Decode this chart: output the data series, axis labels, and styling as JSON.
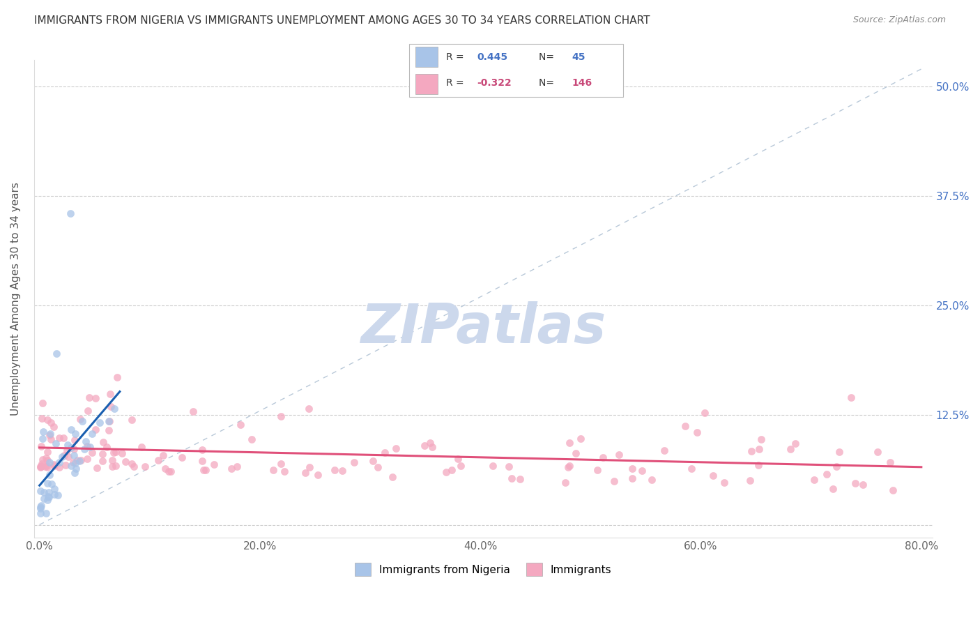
{
  "title": "IMMIGRANTS FROM NIGERIA VS IMMIGRANTS UNEMPLOYMENT AMONG AGES 30 TO 34 YEARS CORRELATION CHART",
  "source": "Source: ZipAtlas.com",
  "xlim": [
    0.0,
    0.8
  ],
  "ylim": [
    0.0,
    0.52
  ],
  "x_tick_vals": [
    0.0,
    0.2,
    0.4,
    0.6,
    0.8
  ],
  "x_tick_labels": [
    "0.0%",
    "20.0%",
    "40.0%",
    "60.0%",
    "80.0%"
  ],
  "y_tick_vals": [
    0.0,
    0.125,
    0.25,
    0.375,
    0.5
  ],
  "y_tick_labels": [
    "",
    "12.5%",
    "25.0%",
    "37.5%",
    "50.0%"
  ],
  "legend_blue_label": "Immigrants from Nigeria",
  "legend_pink_label": "Immigrants",
  "R_blue": 0.445,
  "N_blue": 45,
  "R_pink": -0.322,
  "N_pink": 146,
  "blue_color": "#a8c4e8",
  "pink_color": "#f4a8c0",
  "blue_line_color": "#1a5fb0",
  "pink_line_color": "#e0507a",
  "diag_line_color": "#b8c8d8",
  "watermark_color": "#ccd8ec",
  "title_color": "#333333",
  "axis_tick_color_blue": "#4472c4",
  "axis_tick_color_pink": "#c84878",
  "ylabel": "Unemployment Among Ages 30 to 34 years"
}
